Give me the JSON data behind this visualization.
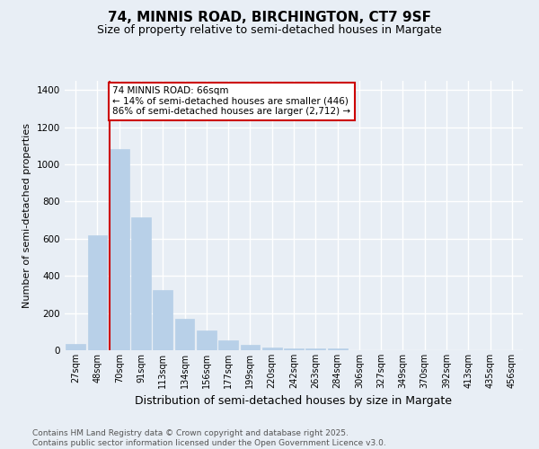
{
  "title": "74, MINNIS ROAD, BIRCHINGTON, CT7 9SF",
  "subtitle": "Size of property relative to semi-detached houses in Margate",
  "xlabel": "Distribution of semi-detached houses by size in Margate",
  "ylabel": "Number of semi-detached properties",
  "categories": [
    "27sqm",
    "48sqm",
    "70sqm",
    "91sqm",
    "113sqm",
    "134sqm",
    "156sqm",
    "177sqm",
    "199sqm",
    "220sqm",
    "242sqm",
    "263sqm",
    "284sqm",
    "306sqm",
    "327sqm",
    "349sqm",
    "370sqm",
    "392sqm",
    "413sqm",
    "435sqm",
    "456sqm"
  ],
  "values": [
    35,
    620,
    1085,
    715,
    325,
    170,
    105,
    55,
    30,
    15,
    10,
    10,
    10,
    0,
    0,
    0,
    0,
    0,
    0,
    0,
    0
  ],
  "bar_color": "#b8d0e8",
  "bar_edge_color": "#b8d0e8",
  "property_line_color": "#cc0000",
  "annotation_text": "74 MINNIS ROAD: 66sqm\n← 14% of semi-detached houses are smaller (446)\n86% of semi-detached houses are larger (2,712) →",
  "annotation_box_color": "#ffffff",
  "annotation_box_edge_color": "#cc0000",
  "ylim": [
    0,
    1450
  ],
  "yticks": [
    0,
    200,
    400,
    600,
    800,
    1000,
    1200,
    1400
  ],
  "footer": "Contains HM Land Registry data © Crown copyright and database right 2025.\nContains public sector information licensed under the Open Government Licence v3.0.",
  "bg_color": "#e8eef5",
  "plot_bg_color": "#e8eef5",
  "grid_color": "#ffffff",
  "title_fontsize": 11,
  "subtitle_fontsize": 9,
  "ylabel_fontsize": 8,
  "xlabel_fontsize": 9,
  "footer_fontsize": 6.5,
  "tick_fontsize": 7,
  "annot_fontsize": 7.5
}
